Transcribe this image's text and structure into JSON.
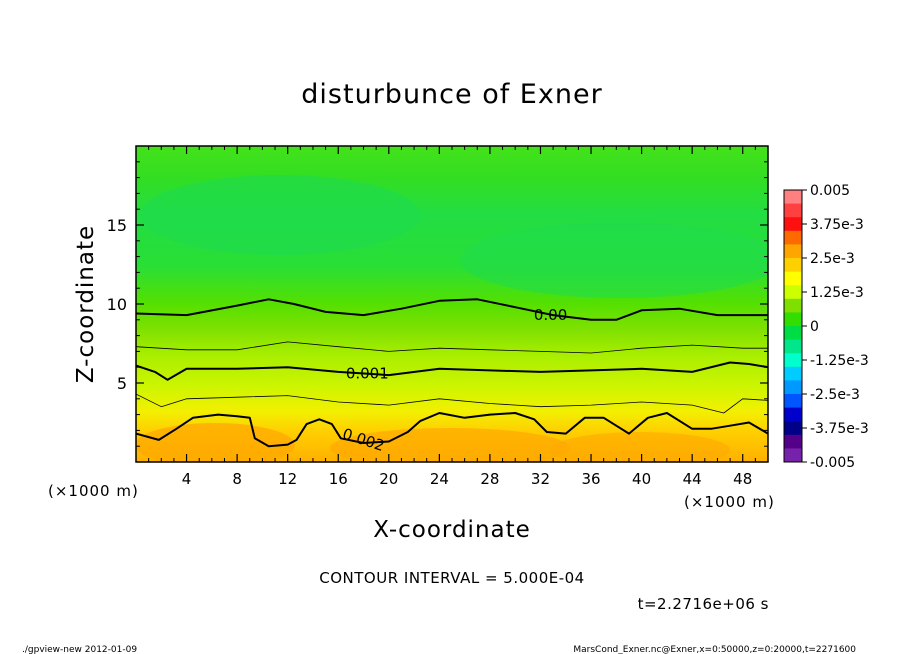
{
  "chart_data": {
    "type": "contour",
    "title": "disturbunce of Exner",
    "xlabel": "X-coordinate",
    "ylabel": "Z-coordinate",
    "x_unit": "(×1000 m)",
    "x_unit_right": "(×1000 m)",
    "xlim": [
      0,
      50
    ],
    "ylim": [
      0,
      20
    ],
    "x_ticks": [
      "4",
      "8",
      "12",
      "16",
      "20",
      "24",
      "28",
      "32",
      "36",
      "40",
      "44",
      "48"
    ],
    "y_ticks": [
      "5",
      "10",
      "15"
    ],
    "contour_interval_text": "CONTOUR INTERVAL = 5.000E-04",
    "time_text": "t=2.2716e+06 s",
    "contour_labels": [
      "0.00",
      "0.001",
      "0.002"
    ],
    "colorbar": {
      "labels": [
        "0.005",
        "3.75e-3",
        "2.5e-3",
        "1.25e-3",
        "0",
        "-1.25e-3",
        "-2.5e-3",
        "-3.75e-3",
        "-0.005"
      ],
      "colors": [
        "#ff8080",
        "#ff4040",
        "#ff1010",
        "#ff6a00",
        "#ffa500",
        "#ffd000",
        "#ffff00",
        "#ccff00",
        "#7fe000",
        "#33dd00",
        "#00dd44",
        "#00e68a",
        "#00ffcc",
        "#00ccff",
        "#0099ff",
        "#0055ff",
        "#0000cc",
        "#000088",
        "#550088",
        "#7722aa"
      ]
    },
    "contours": [
      {
        "level": 0.0,
        "line": "thick",
        "points": [
          [
            0,
            9.4
          ],
          [
            4,
            9.3
          ],
          [
            8,
            9.9
          ],
          [
            10.5,
            10.3
          ],
          [
            12.5,
            10.0
          ],
          [
            15,
            9.5
          ],
          [
            18,
            9.3
          ],
          [
            21,
            9.7
          ],
          [
            24,
            10.2
          ],
          [
            27,
            10.3
          ],
          [
            30,
            9.8
          ],
          [
            33,
            9.3
          ],
          [
            36,
            9.0
          ],
          [
            38,
            9.0
          ],
          [
            40,
            9.6
          ],
          [
            43,
            9.7
          ],
          [
            46,
            9.3
          ],
          [
            50,
            9.3
          ]
        ]
      },
      {
        "level": 0.0005,
        "line": "thin",
        "points": [
          [
            0,
            7.3
          ],
          [
            4,
            7.1
          ],
          [
            8,
            7.1
          ],
          [
            12,
            7.6
          ],
          [
            16,
            7.3
          ],
          [
            20,
            7.0
          ],
          [
            24,
            7.2
          ],
          [
            28,
            7.1
          ],
          [
            32,
            7.0
          ],
          [
            36,
            6.9
          ],
          [
            40,
            7.2
          ],
          [
            44,
            7.4
          ],
          [
            48,
            7.2
          ],
          [
            50,
            7.2
          ]
        ]
      },
      {
        "level": 0.001,
        "line": "thick",
        "points": [
          [
            0,
            6.1
          ],
          [
            1.5,
            5.7
          ],
          [
            2.5,
            5.2
          ],
          [
            4,
            5.9
          ],
          [
            8,
            5.9
          ],
          [
            12,
            6.0
          ],
          [
            16,
            5.7
          ],
          [
            20,
            5.5
          ],
          [
            24,
            5.9
          ],
          [
            28,
            5.8
          ],
          [
            32,
            5.7
          ],
          [
            36,
            5.8
          ],
          [
            40,
            5.9
          ],
          [
            44,
            5.7
          ],
          [
            47,
            6.3
          ],
          [
            48.5,
            6.2
          ],
          [
            50,
            6.0
          ]
        ]
      },
      {
        "level": 0.0015,
        "line": "thin",
        "points": [
          [
            0,
            4.3
          ],
          [
            2,
            3.5
          ],
          [
            4,
            4.0
          ],
          [
            8,
            4.1
          ],
          [
            12,
            4.2
          ],
          [
            16,
            3.8
          ],
          [
            20,
            3.6
          ],
          [
            24,
            4.0
          ],
          [
            28,
            3.7
          ],
          [
            32,
            3.5
          ],
          [
            36,
            3.6
          ],
          [
            40,
            3.8
          ],
          [
            44,
            3.6
          ],
          [
            46.5,
            3.1
          ],
          [
            48,
            4.0
          ],
          [
            50,
            3.9
          ]
        ]
      },
      {
        "level": 0.002,
        "line": "thick",
        "points": [
          [
            0,
            1.8
          ],
          [
            1.8,
            1.4
          ],
          [
            3.2,
            2.1
          ],
          [
            4.5,
            2.8
          ],
          [
            6.5,
            3.0
          ],
          [
            8,
            2.9
          ],
          [
            9,
            2.8
          ],
          [
            9.4,
            1.5
          ],
          [
            10.5,
            1.0
          ],
          [
            12,
            1.1
          ],
          [
            12.7,
            1.4
          ],
          [
            13.5,
            2.4
          ],
          [
            14.5,
            2.7
          ],
          [
            15.5,
            2.4
          ],
          [
            16.2,
            1.5
          ],
          [
            18,
            1.2
          ],
          [
            20,
            1.3
          ],
          [
            21.5,
            1.9
          ],
          [
            22.5,
            2.6
          ],
          [
            24,
            3.1
          ],
          [
            26,
            2.8
          ],
          [
            28,
            3.0
          ],
          [
            30,
            3.1
          ],
          [
            31.5,
            2.7
          ],
          [
            32.5,
            1.9
          ],
          [
            34,
            1.8
          ],
          [
            35.5,
            2.8
          ],
          [
            37,
            2.8
          ],
          [
            38,
            2.3
          ],
          [
            39,
            1.8
          ],
          [
            40.5,
            2.8
          ],
          [
            42,
            3.1
          ],
          [
            44,
            2.1
          ],
          [
            45.5,
            2.1
          ],
          [
            47,
            2.3
          ],
          [
            48.5,
            2.5
          ],
          [
            50,
            1.8
          ]
        ]
      }
    ],
    "contour_label_positions": [
      [
        32.8,
        9.3
      ],
      [
        18.3,
        5.6
      ],
      [
        18.0,
        1.4
      ]
    ]
  },
  "footer": {
    "left": "./gpview-new  2012-01-09",
    "right": "MarsCond_Exner.nc@Exner,x=0:50000,z=0:20000,t=2271600"
  }
}
